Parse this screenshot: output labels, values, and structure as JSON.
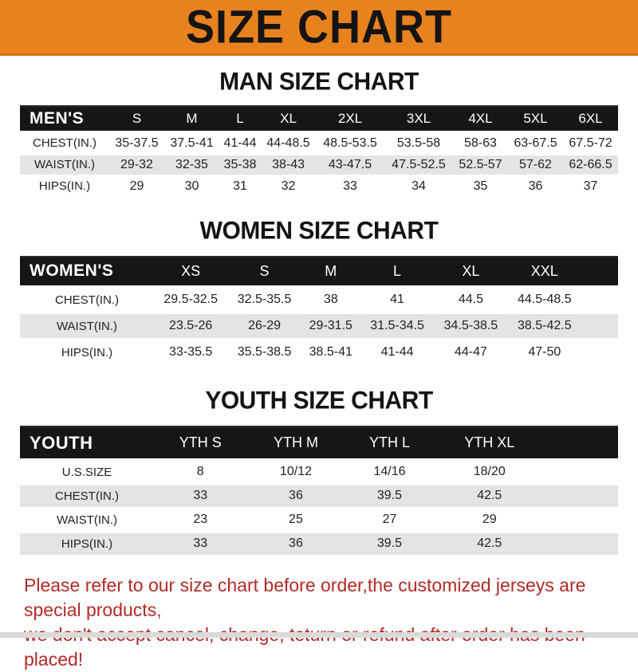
{
  "banner": {
    "title": "SIZE CHART",
    "bg_color": "#E8821F",
    "text_color": "#141414"
  },
  "tables": [
    {
      "heading": "MAN SIZE CHART",
      "header_label": "MEN'S",
      "columns": [
        "S",
        "M",
        "L",
        "XL",
        "2XL",
        "3XL",
        "4XL",
        "5XL",
        "6XL"
      ],
      "rows": [
        {
          "label": "CHEST(IN.)",
          "values": [
            "35-37.5",
            "37.5-41",
            "41-44",
            "44-48.5",
            "48.5-53.5",
            "53.5-58",
            "58-63",
            "63-67.5",
            "67.5-72"
          ]
        },
        {
          "label": "WAIST(IN.)",
          "values": [
            "29-32",
            "32-35",
            "35-38",
            "38-43",
            "43-47.5",
            "47.5-52.5",
            "52.5-57",
            "57-62",
            "62-66.5"
          ]
        },
        {
          "label": "HIPS(IN.)",
          "values": [
            "29",
            "30",
            "31",
            "32",
            "33",
            "34",
            "35",
            "36",
            "37"
          ]
        }
      ]
    },
    {
      "heading": "WOMEN SIZE CHART",
      "header_label": "WOMEN'S",
      "columns": [
        "XS",
        "S",
        "M",
        "L",
        "XL",
        "XXL"
      ],
      "rows": [
        {
          "label": "CHEST(IN.)",
          "values": [
            "29.5-32.5",
            "32.5-35.5",
            "38",
            "41",
            "44.5",
            "44.5-48.5"
          ]
        },
        {
          "label": "WAIST(IN.)",
          "values": [
            "23.5-26",
            "26-29",
            "29-31.5",
            "31.5-34.5",
            "34.5-38.5",
            "38.5-42.5"
          ]
        },
        {
          "label": "HIPS(IN.)",
          "values": [
            "33-35.5",
            "35.5-38.5",
            "38.5-41",
            "41-44",
            "44-47",
            "47-50"
          ]
        }
      ]
    },
    {
      "heading": "YOUTH SIZE CHART",
      "header_label": "YOUTH",
      "columns": [
        "YTH S",
        "YTH M",
        "YTH L",
        "YTH XL"
      ],
      "rows": [
        {
          "label": "U.S.SIZE",
          "values": [
            "8",
            "10/12",
            "14/16",
            "18/20"
          ]
        },
        {
          "label": "CHEST(IN.)",
          "values": [
            "33",
            "36",
            "39.5",
            "42.5"
          ]
        },
        {
          "label": "WAIST(IN.)",
          "values": [
            "23",
            "25",
            "27",
            "29"
          ]
        },
        {
          "label": "HIPS(IN.)",
          "values": [
            "33",
            "36",
            "39.5",
            "42.5"
          ]
        }
      ]
    }
  ],
  "footer": {
    "line1": "Please refer to our size chart before order,the customized jerseys are special products,",
    "line2": "we don't accept cancel, change, teturn or refund after order has been placed!",
    "text_color": "#B22A26"
  }
}
